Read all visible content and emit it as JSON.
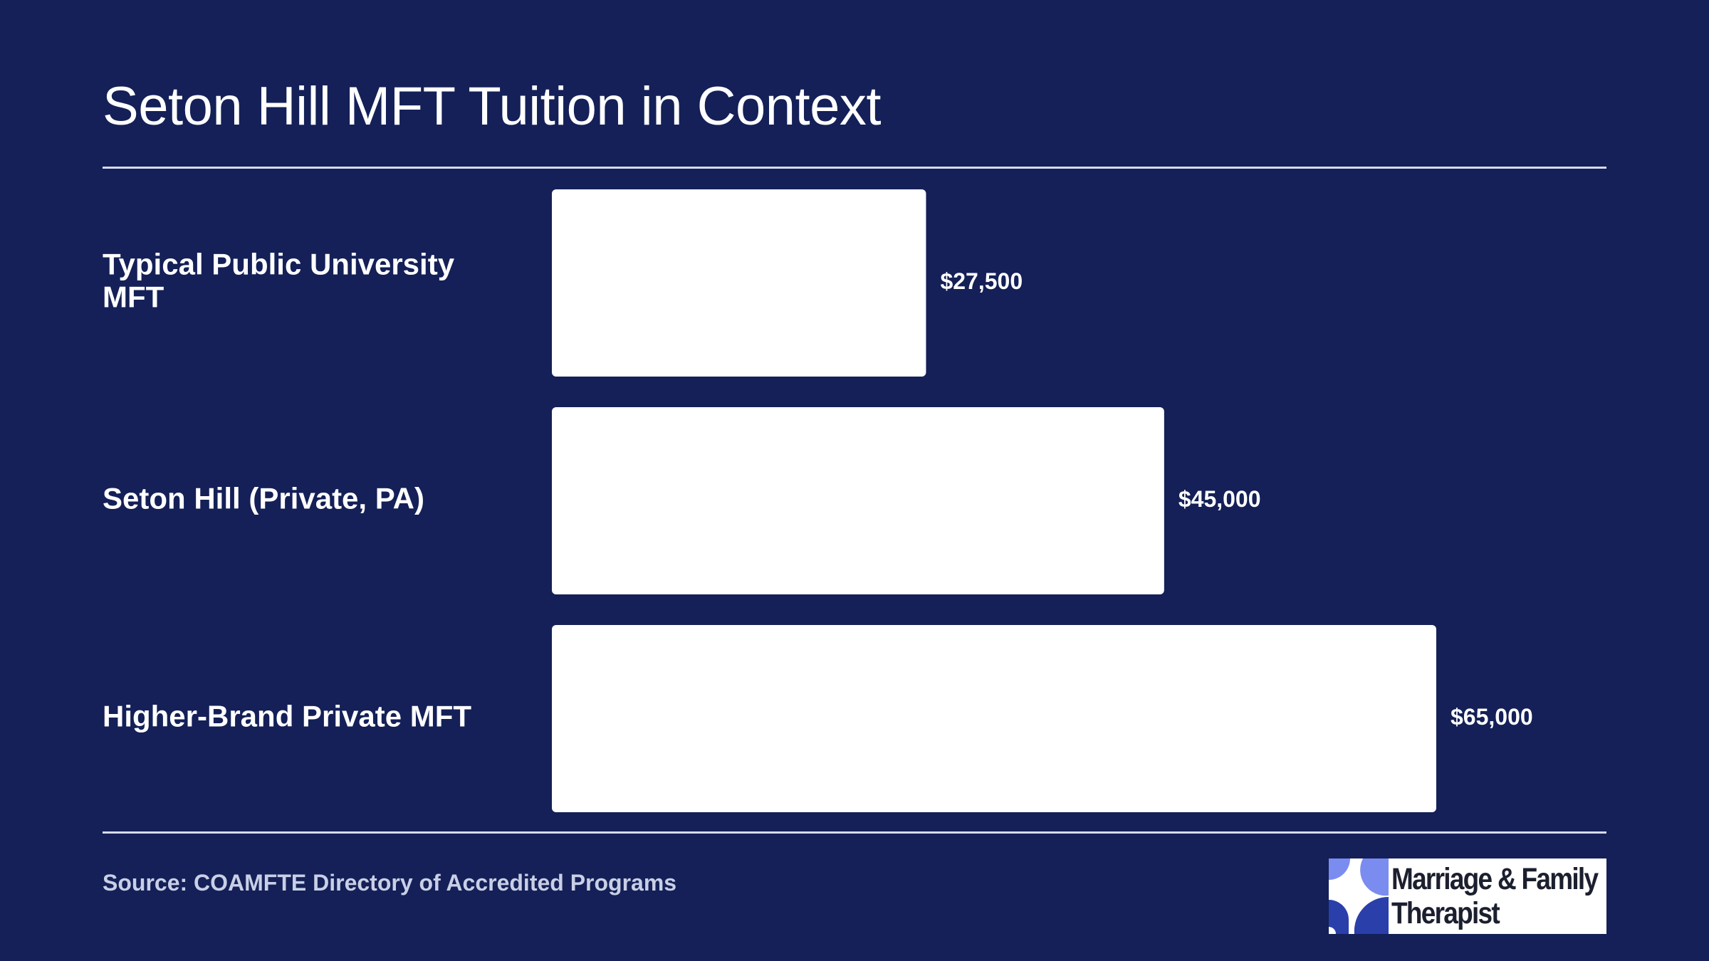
{
  "title": "Seton Hill MFT Tuition in Context",
  "source": "Source: COAMFTE Directory of Accredited Programs",
  "logo": {
    "line1": "Marriage & Family",
    "line2": "Therapist",
    "icon": "quarter-circles-logo-icon",
    "colors": [
      "#7b8cf0",
      "#2a3faa"
    ]
  },
  "colors": {
    "background": "#142057",
    "bar": "#ffffff",
    "text": "#ffffff",
    "source_text": "#c9cfe6"
  },
  "chart_data": {
    "type": "bar",
    "orientation": "horizontal",
    "categories": [
      [
        "Typical Public University",
        "MFT"
      ],
      [
        "Seton Hill (Private, PA)"
      ],
      [
        "Higher-Brand Private MFT"
      ]
    ],
    "values": [
      27500,
      45000,
      65000
    ],
    "value_labels": [
      "$27,500",
      "$45,000",
      "$65,000"
    ],
    "xlim": [
      0,
      65000
    ],
    "grid": false,
    "legend": "none"
  }
}
